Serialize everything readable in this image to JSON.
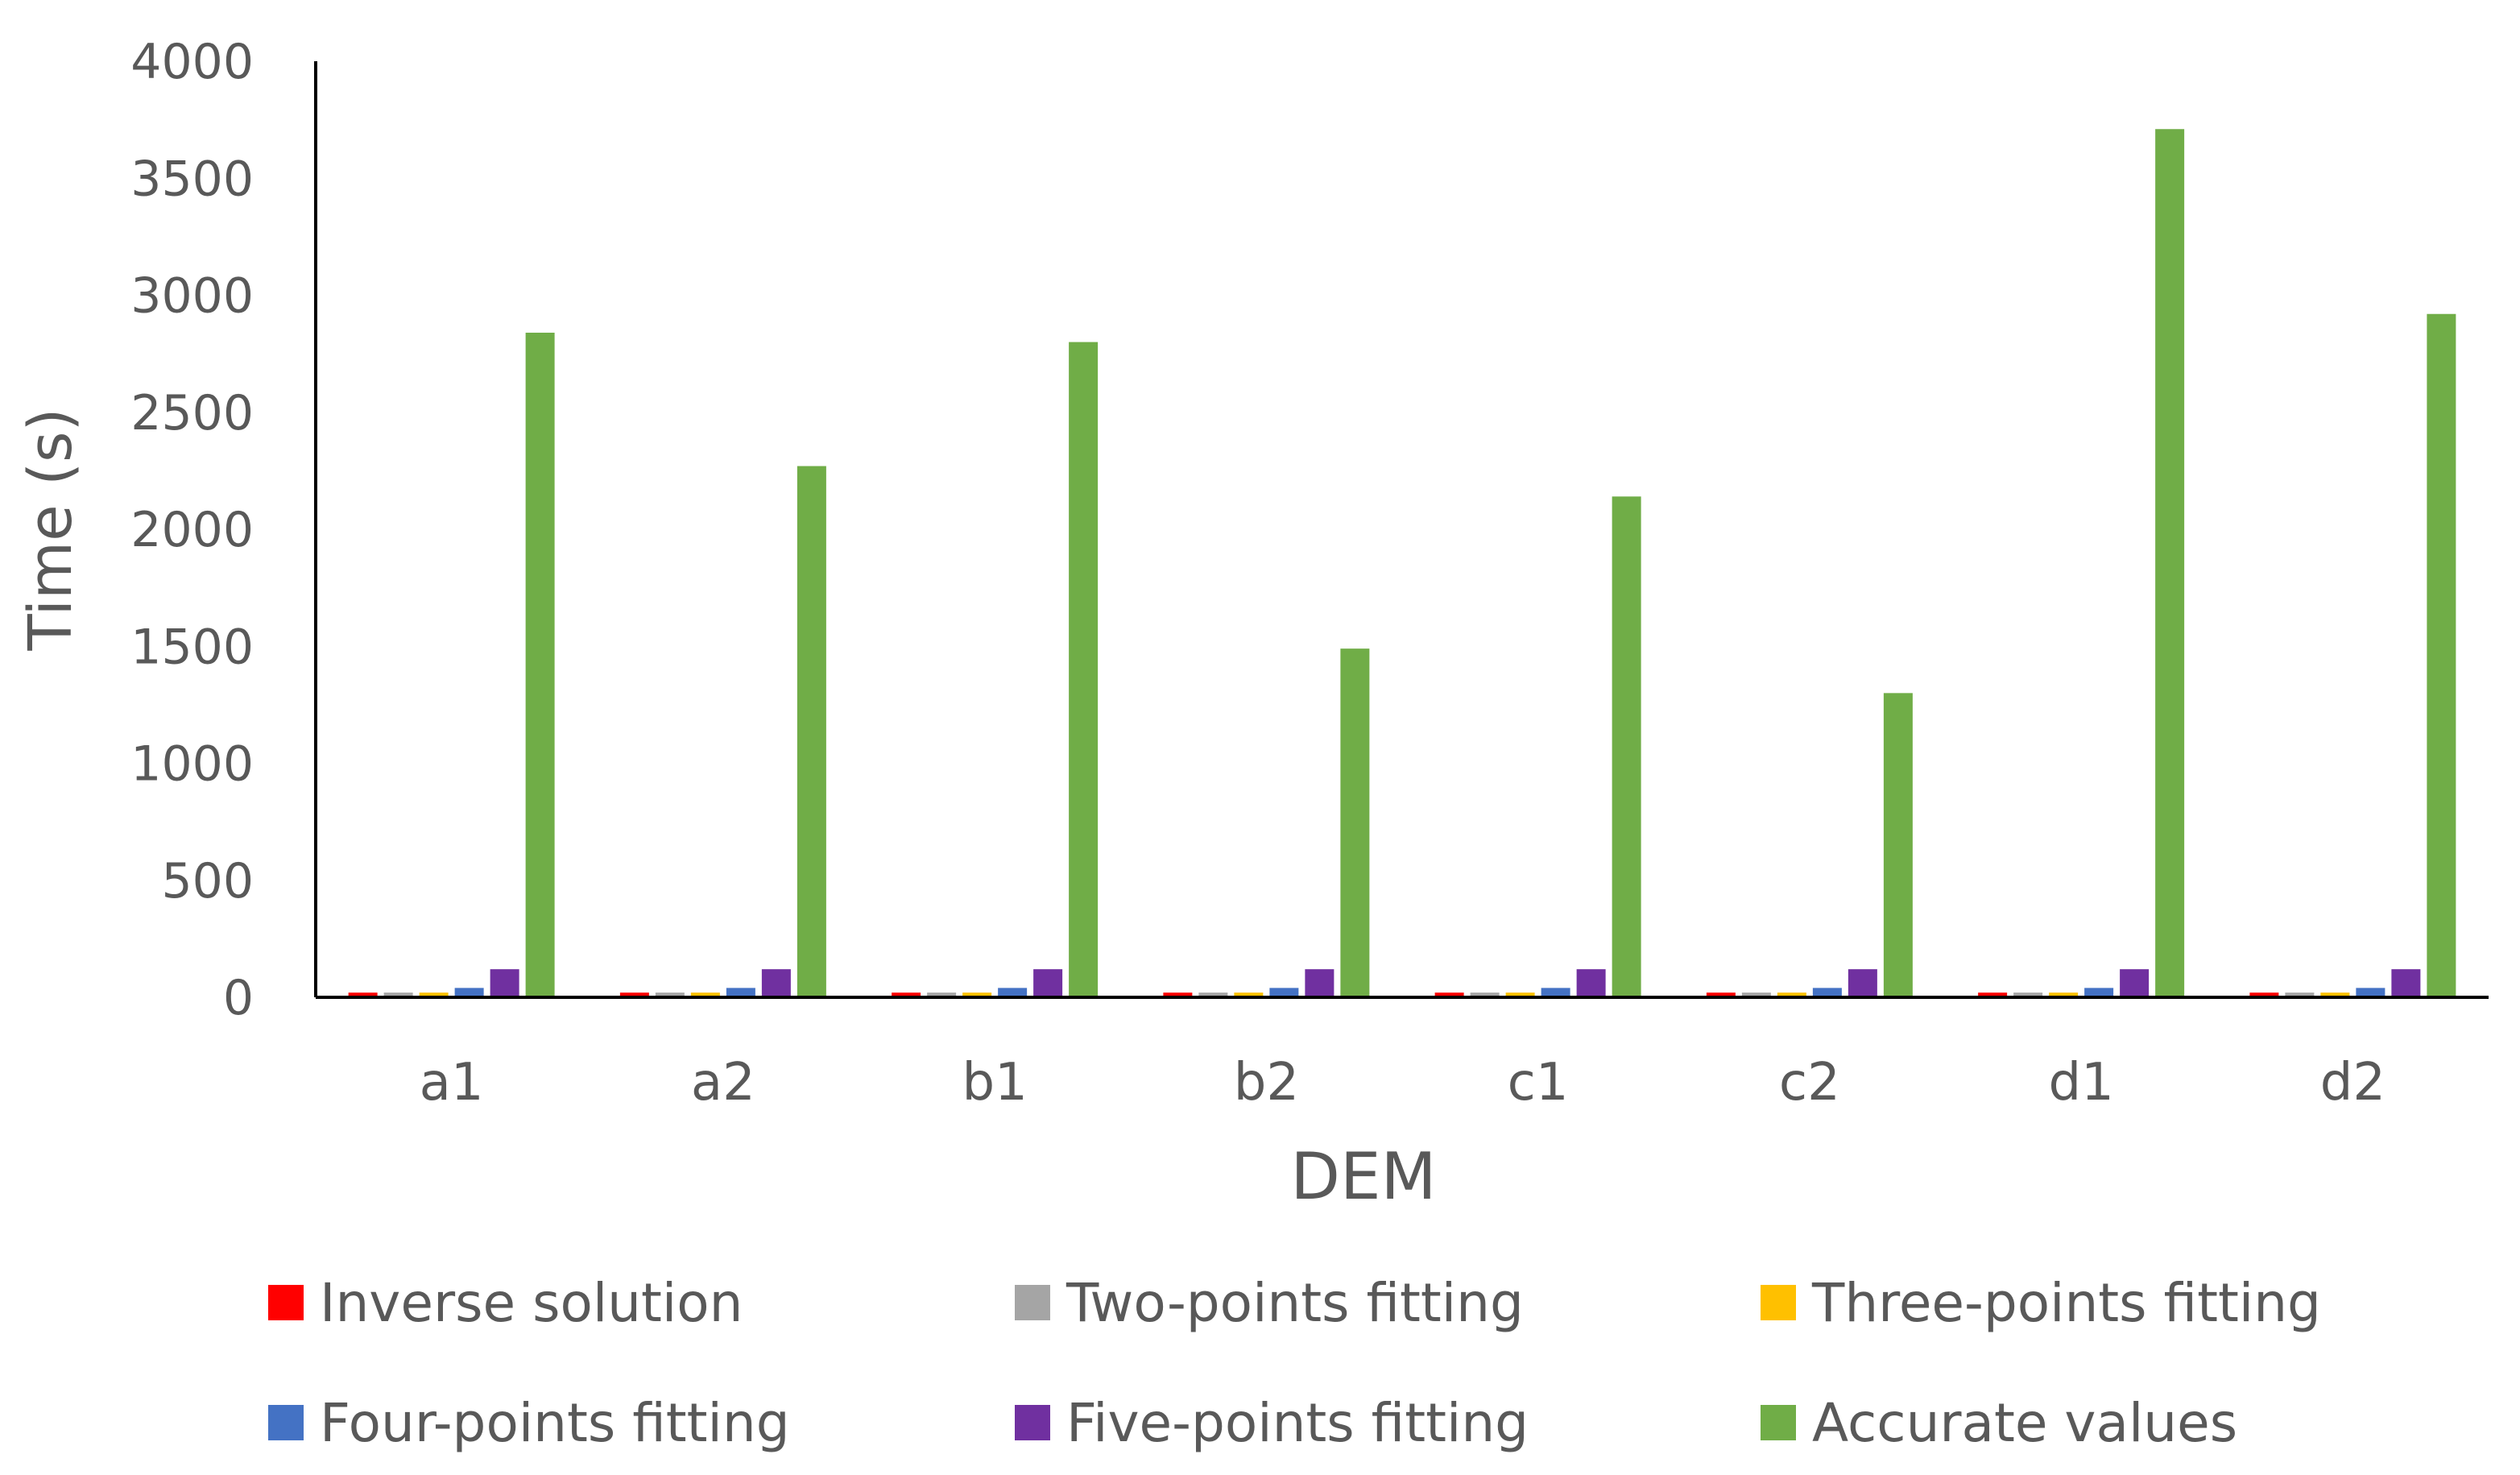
{
  "chart_data": {
    "type": "bar",
    "title": "",
    "xlabel": "DEM",
    "ylabel": "Time (s)",
    "ylim": [
      0,
      4000
    ],
    "yticks": [
      0,
      500,
      1000,
      1500,
      2000,
      2500,
      3000,
      3500,
      4000
    ],
    "ytick_labels": [
      "0",
      "500",
      "1000",
      "1500",
      "2000",
      "2500",
      "3000",
      "3500",
      "4000"
    ],
    "grid": false,
    "legend_position": "bottom",
    "categories": [
      "a1",
      "a2",
      "b1",
      "b2",
      "c1",
      "c2",
      "d1",
      "d2"
    ],
    "series": [
      {
        "name": "Inverse solution",
        "color": "#FF0000",
        "values": [
          20,
          20,
          20,
          20,
          20,
          20,
          20,
          20
        ]
      },
      {
        "name": "Two-points fitting",
        "color": "#A5A5A5",
        "values": [
          20,
          20,
          20,
          20,
          20,
          20,
          20,
          20
        ]
      },
      {
        "name": "Three-points fitting",
        "color": "#FFC000",
        "values": [
          20,
          20,
          20,
          20,
          20,
          20,
          20,
          20
        ]
      },
      {
        "name": "Four-points fitting",
        "color": "#4472C4",
        "values": [
          40,
          40,
          40,
          40,
          40,
          40,
          40,
          40
        ]
      },
      {
        "name": "Five-points fitting",
        "color": "#7030A0",
        "values": [
          120,
          120,
          120,
          120,
          120,
          120,
          120,
          120
        ]
      },
      {
        "name": "Accurate values",
        "color": "#70AD47",
        "values": [
          2840,
          2270,
          2800,
          1490,
          2140,
          1300,
          3710,
          2920
        ]
      }
    ]
  }
}
